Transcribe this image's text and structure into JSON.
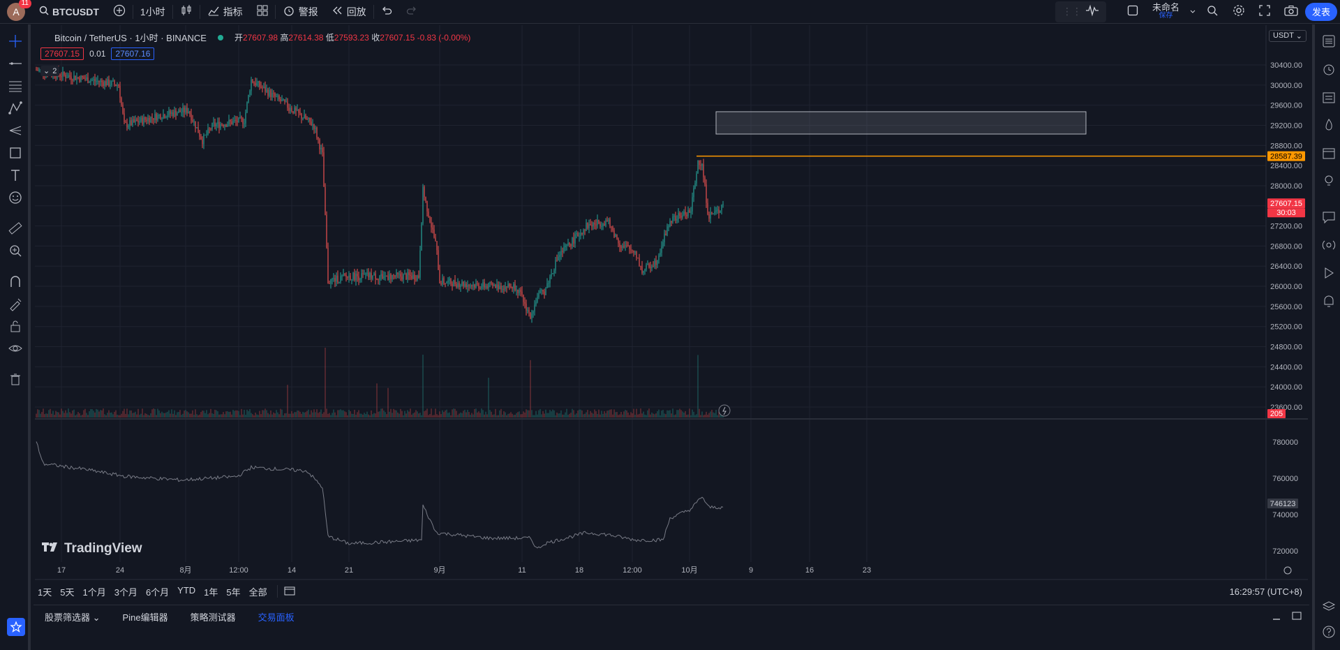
{
  "topbar": {
    "avatar_letter": "A",
    "notif_count": "11",
    "symbol": "BTCUSDT",
    "interval": "1小时",
    "indicators_label": "指标",
    "alerts_label": "警报",
    "replay_label": "回放",
    "layout_name": "未命名",
    "layout_save": "保存",
    "publish_label": "发表"
  },
  "legend": {
    "title": "Bitcoin / TetherUS · 1小时 · BINANCE",
    "open_label": "开",
    "open": "27607.98",
    "high_label": "高",
    "high": "27614.38",
    "low_label": "低",
    "low": "27593.23",
    "close_label": "收",
    "close": "27607.15",
    "change": "-0.83 (-0.00%)",
    "bid": "27607.15",
    "spread": "0.01",
    "ask": "27607.16",
    "indicator_count": "2"
  },
  "currency": "USDT",
  "price_axis": [
    "30400.00",
    "30000.00",
    "29600.00",
    "29200.00",
    "28800.00",
    "28400.00",
    "28000.00",
    "27200.00",
    "26800.00",
    "26400.00",
    "26000.00",
    "25600.00",
    "25200.00",
    "24800.00",
    "24400.00",
    "24000.00",
    "23600.00"
  ],
  "tags": {
    "hline_price": "28587.39",
    "last_price": "27607.15",
    "countdown": "30:03",
    "volume": "205",
    "sub_value": "746123"
  },
  "sub_axis": [
    "780000",
    "760000",
    "740000",
    "720000"
  ],
  "time_axis": [
    "17",
    "24",
    "8月",
    "12:00",
    "14",
    "21",
    "9月",
    "11",
    "18",
    "12:00",
    "10月",
    "9",
    "16",
    "23"
  ],
  "watermark": "TradingView",
  "timeframes": [
    "1天",
    "5天",
    "1个月",
    "3个月",
    "6个月",
    "YTD",
    "1年",
    "5年",
    "全部"
  ],
  "clock": "16:29:57 (UTC+8)",
  "bottom_tabs": [
    "股票筛选器",
    "Pine编辑器",
    "策略测试器",
    "交易面板"
  ],
  "colors": {
    "up": "#26a69a",
    "down": "#ef5350",
    "accent": "#2962ff",
    "hline": "#ff9800"
  }
}
